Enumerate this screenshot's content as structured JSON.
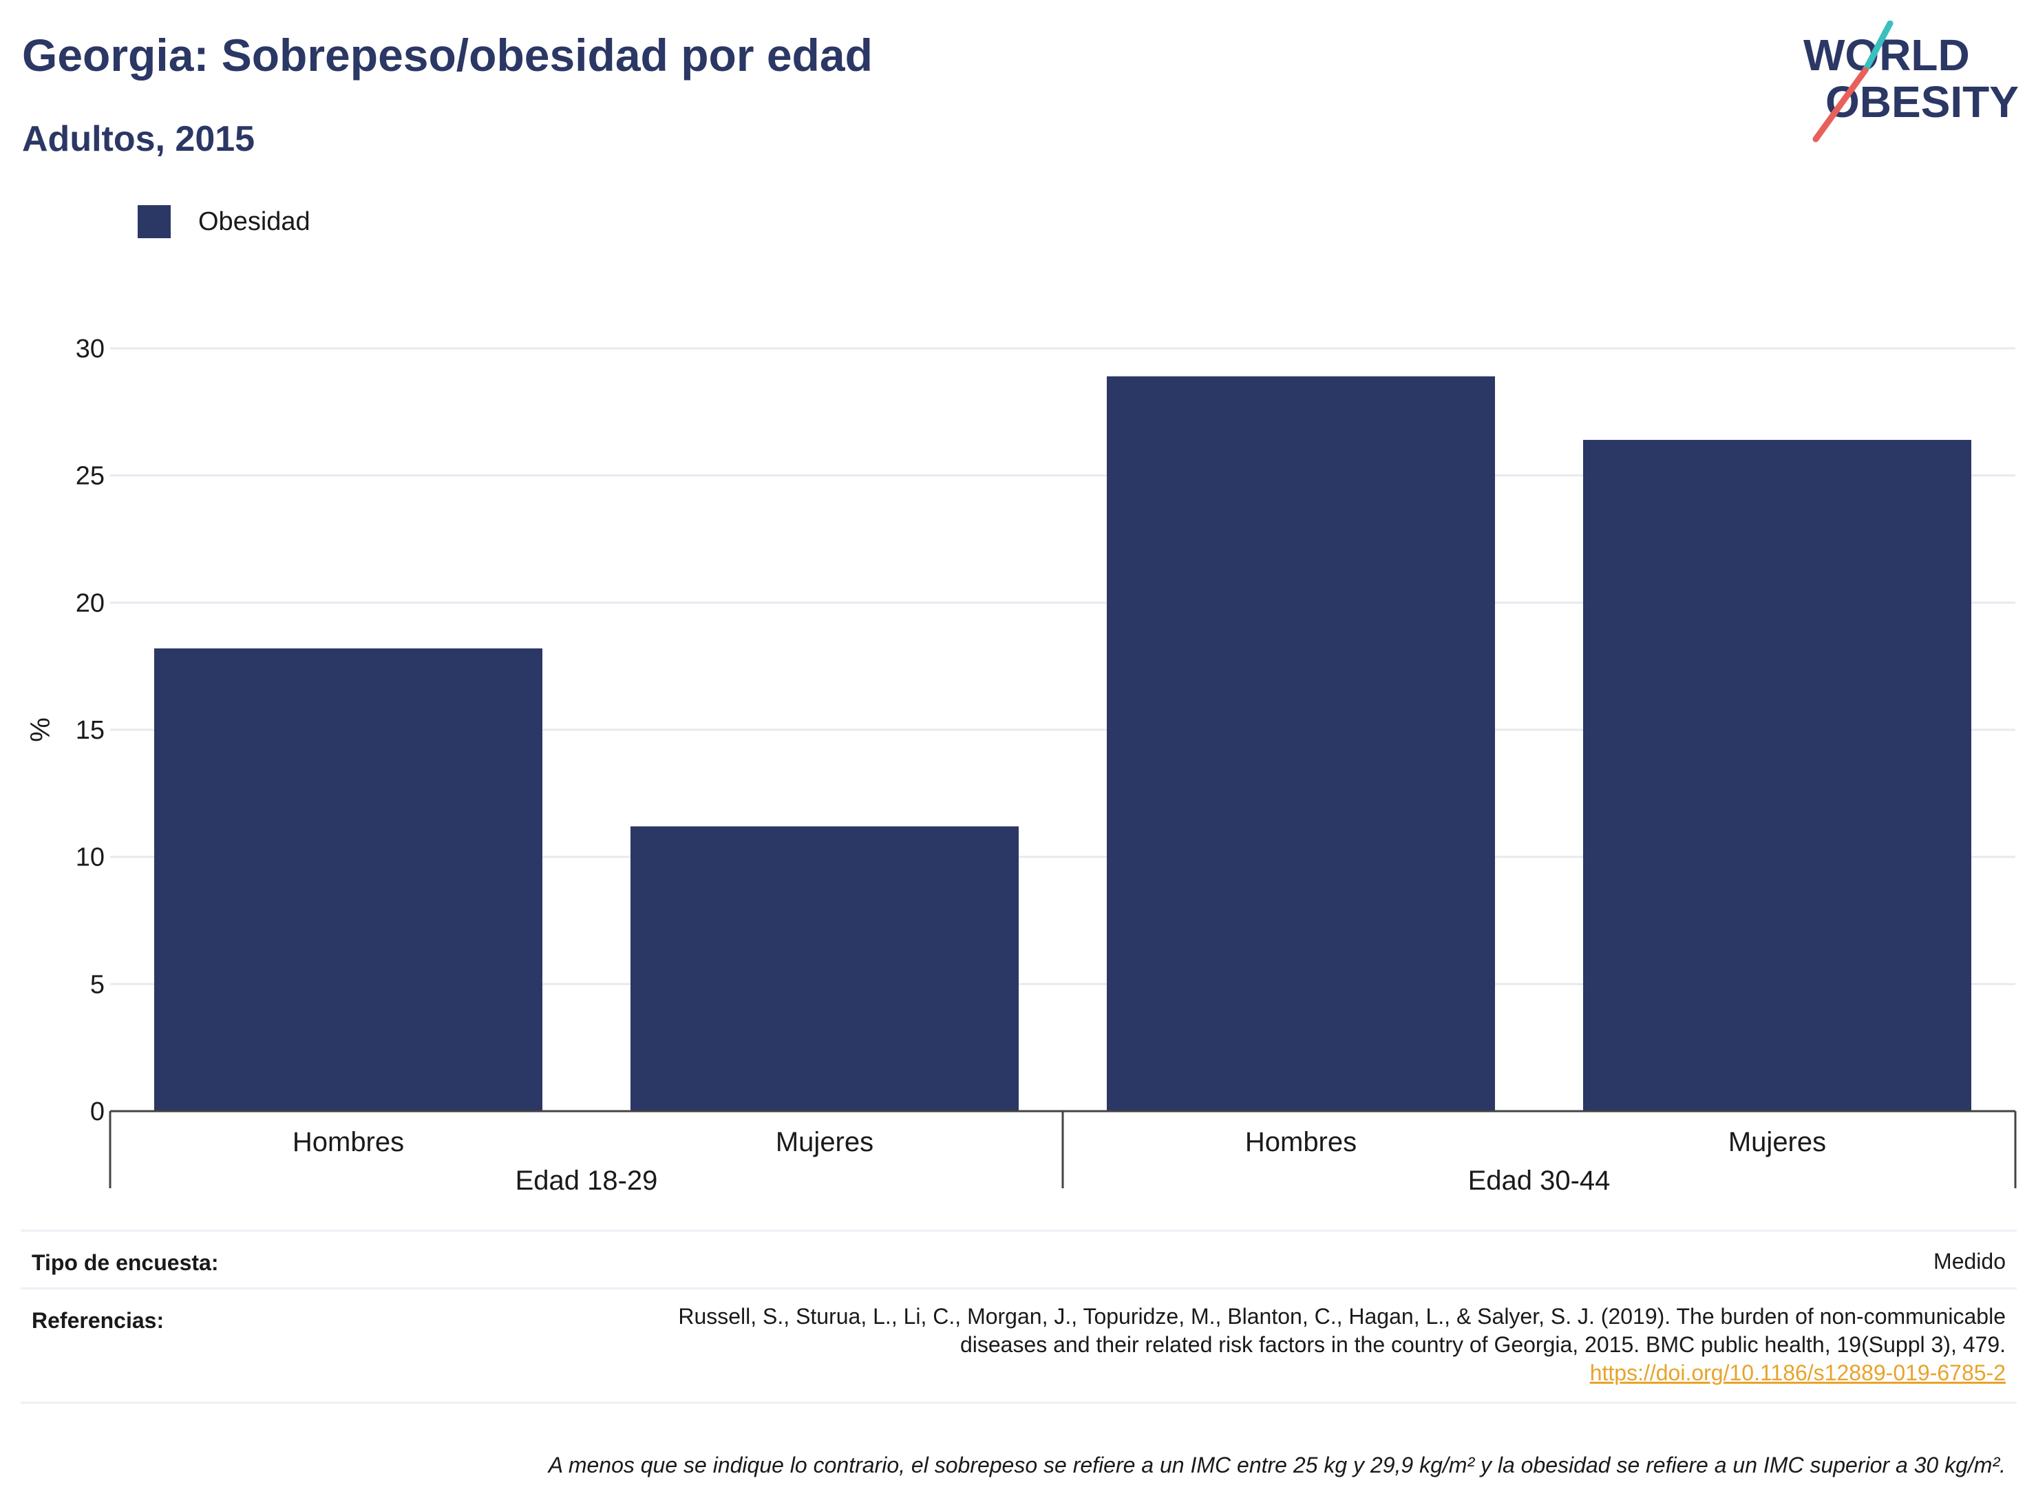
{
  "header": {
    "title": "Georgia: Sobrepeso/obesidad por edad",
    "subtitle": "Adultos, 2015"
  },
  "logo": {
    "line1": "WORLD",
    "line2": "OBESITY",
    "accent_colors": [
      "#3bbfbf",
      "#e8605a"
    ],
    "text_color": "#2b3764"
  },
  "legend": {
    "label": "Obesidad",
    "color": "#2b3764"
  },
  "chart_data": {
    "type": "bar",
    "title": "Georgia: Sobrepeso/obesidad por edad",
    "subtitle": "Adultos, 2015",
    "ylabel": "%",
    "ylim": [
      0,
      30
    ],
    "yticks": [
      0,
      5,
      10,
      15,
      20,
      25,
      30
    ],
    "grid": true,
    "legend_position": "top-left",
    "categories": [
      "Hombres",
      "Mujeres",
      "Hombres",
      "Mujeres"
    ],
    "groups": [
      {
        "label": "Edad 18-29",
        "categories": [
          "Hombres",
          "Mujeres"
        ]
      },
      {
        "label": "Edad 30-44",
        "categories": [
          "Hombres",
          "Mujeres"
        ]
      }
    ],
    "series": [
      {
        "name": "Obesidad",
        "color": "#2b3764",
        "values": [
          18.2,
          11.2,
          28.9,
          26.4
        ]
      }
    ]
  },
  "footer": {
    "survey_label": "Tipo de encuesta:",
    "survey_value": "Medido",
    "references_label": "Referencias:",
    "references_line1": "Russell, S., Sturua, L., Li, C., Morgan, J., Topuridze, M., Blanton, C., Hagan, L., & Salyer, S. J. (2019). The burden of non-communicable",
    "references_line2": "diseases and their related risk factors in the country of Georgia, 2015. BMC public health, 19(Suppl 3), 479.",
    "references_link": "https://doi.org/10.1186/s12889-019-6785-2",
    "note": "A menos que se indique lo contrario, el sobrepeso se refiere a un IMC entre 25 kg y 29,9 kg/m² y la obesidad se refiere a un IMC superior a 30 kg/m²."
  }
}
